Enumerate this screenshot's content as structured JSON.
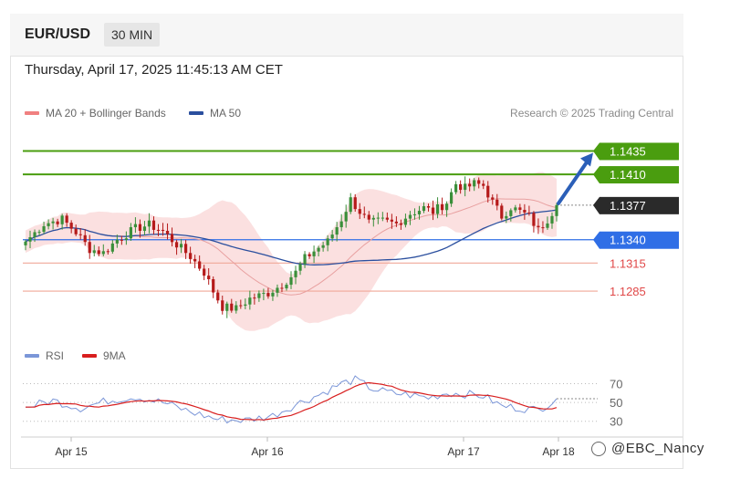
{
  "header": {
    "pair": "EUR/USD",
    "timeframe": "30 MIN"
  },
  "timestamp": "Thursday, April 17, 2025 11:45:13 AM CET",
  "legend": {
    "ma20_label": "MA 20 + Bollinger Bands",
    "ma50_label": "MA 50",
    "rsi_label": "RSI",
    "rsi_ma_label": "9MA"
  },
  "credit": "Research © 2025 Trading Central",
  "watermark": "@EBC_Nancy",
  "colors": {
    "up": "#3a8f3a",
    "down": "#b51a1a",
    "band": "#fadada",
    "ma20": "#e8a0a0",
    "ma50": "#2b4f9e",
    "green": "#4a9d0f",
    "blue": "#2f6ee6",
    "red": "#e04848",
    "dark": "#2a2a2a",
    "rsi": "#7b96d8",
    "rsi_ma": "#d81e1e"
  },
  "chart_data": [
    {
      "type": "candlestick",
      "title": "EUR/USD 30 MIN",
      "x_ticks": [
        "Apr 15",
        "Apr 16",
        "Apr 17",
        "Apr 18"
      ],
      "ylim": [
        1.1245,
        1.1455
      ],
      "levels": [
        {
          "value": 1.1435,
          "label": "1.1435",
          "kind": "resistance"
        },
        {
          "value": 1.141,
          "label": "1.1410",
          "kind": "resistance"
        },
        {
          "value": 1.1377,
          "label": "1.1377",
          "kind": "last"
        },
        {
          "value": 1.134,
          "label": "1.1340",
          "kind": "pivot"
        },
        {
          "value": 1.1315,
          "label": "1.1315",
          "kind": "support"
        },
        {
          "value": 1.1285,
          "label": "1.1285",
          "kind": "support"
        }
      ],
      "anchors": [
        {
          "t": 0,
          "c": 1.1338
        },
        {
          "t": 4,
          "c": 1.1357
        },
        {
          "t": 8,
          "c": 1.1362
        },
        {
          "t": 11,
          "c": 1.1348
        },
        {
          "t": 14,
          "c": 1.133
        },
        {
          "t": 17,
          "c": 1.1326
        },
        {
          "t": 20,
          "c": 1.134
        },
        {
          "t": 24,
          "c": 1.1352
        },
        {
          "t": 27,
          "c": 1.1356
        },
        {
          "t": 30,
          "c": 1.1349
        },
        {
          "t": 33,
          "c": 1.1335
        },
        {
          "t": 36,
          "c": 1.1322
        },
        {
          "t": 39,
          "c": 1.1305
        },
        {
          "t": 41,
          "c": 1.1285
        },
        {
          "t": 43,
          "c": 1.1268
        },
        {
          "t": 46,
          "c": 1.1266
        },
        {
          "t": 49,
          "c": 1.1277
        },
        {
          "t": 53,
          "c": 1.1283
        },
        {
          "t": 56,
          "c": 1.1292
        },
        {
          "t": 59,
          "c": 1.1305
        },
        {
          "t": 61,
          "c": 1.132
        },
        {
          "t": 63,
          "c": 1.1328
        },
        {
          "t": 66,
          "c": 1.1338
        },
        {
          "t": 69,
          "c": 1.1362
        },
        {
          "t": 71,
          "c": 1.1383
        },
        {
          "t": 73,
          "c": 1.137
        },
        {
          "t": 75,
          "c": 1.1358
        },
        {
          "t": 78,
          "c": 1.136
        },
        {
          "t": 81,
          "c": 1.1357
        },
        {
          "t": 84,
          "c": 1.1368
        },
        {
          "t": 87,
          "c": 1.1374
        },
        {
          "t": 89,
          "c": 1.137
        },
        {
          "t": 92,
          "c": 1.138
        },
        {
          "t": 94,
          "c": 1.14
        },
        {
          "t": 96,
          "c": 1.1395
        },
        {
          "t": 98,
          "c": 1.14
        },
        {
          "t": 100,
          "c": 1.1398
        },
        {
          "t": 102,
          "c": 1.138
        },
        {
          "t": 104,
          "c": 1.1365
        },
        {
          "t": 106,
          "c": 1.1375
        },
        {
          "t": 108,
          "c": 1.137
        },
        {
          "t": 110,
          "c": 1.1365
        },
        {
          "t": 112,
          "c": 1.135
        },
        {
          "t": 114,
          "c": 1.1362
        },
        {
          "t": 116,
          "c": 1.1377
        }
      ],
      "forecast": {
        "from": 1.1377,
        "to": 1.1435
      }
    },
    {
      "type": "line",
      "title": "RSI",
      "series_names": [
        "RSI",
        "9MA"
      ],
      "yticks": [
        70,
        50,
        30
      ],
      "ylim": [
        20,
        85
      ],
      "rsi_anchors": [
        {
          "t": 0,
          "v": 45
        },
        {
          "t": 6,
          "v": 52
        },
        {
          "t": 12,
          "v": 44
        },
        {
          "t": 18,
          "v": 52
        },
        {
          "t": 24,
          "v": 56
        },
        {
          "t": 30,
          "v": 50
        },
        {
          "t": 36,
          "v": 40
        },
        {
          "t": 42,
          "v": 32
        },
        {
          "t": 48,
          "v": 31
        },
        {
          "t": 54,
          "v": 36
        },
        {
          "t": 60,
          "v": 50
        },
        {
          "t": 64,
          "v": 58
        },
        {
          "t": 69,
          "v": 70
        },
        {
          "t": 72,
          "v": 74
        },
        {
          "t": 76,
          "v": 64
        },
        {
          "t": 80,
          "v": 60
        },
        {
          "t": 84,
          "v": 58
        },
        {
          "t": 88,
          "v": 55
        },
        {
          "t": 92,
          "v": 60
        },
        {
          "t": 96,
          "v": 59
        },
        {
          "t": 100,
          "v": 57
        },
        {
          "t": 104,
          "v": 46
        },
        {
          "t": 108,
          "v": 44
        },
        {
          "t": 112,
          "v": 42
        },
        {
          "t": 116,
          "v": 54
        }
      ]
    }
  ]
}
